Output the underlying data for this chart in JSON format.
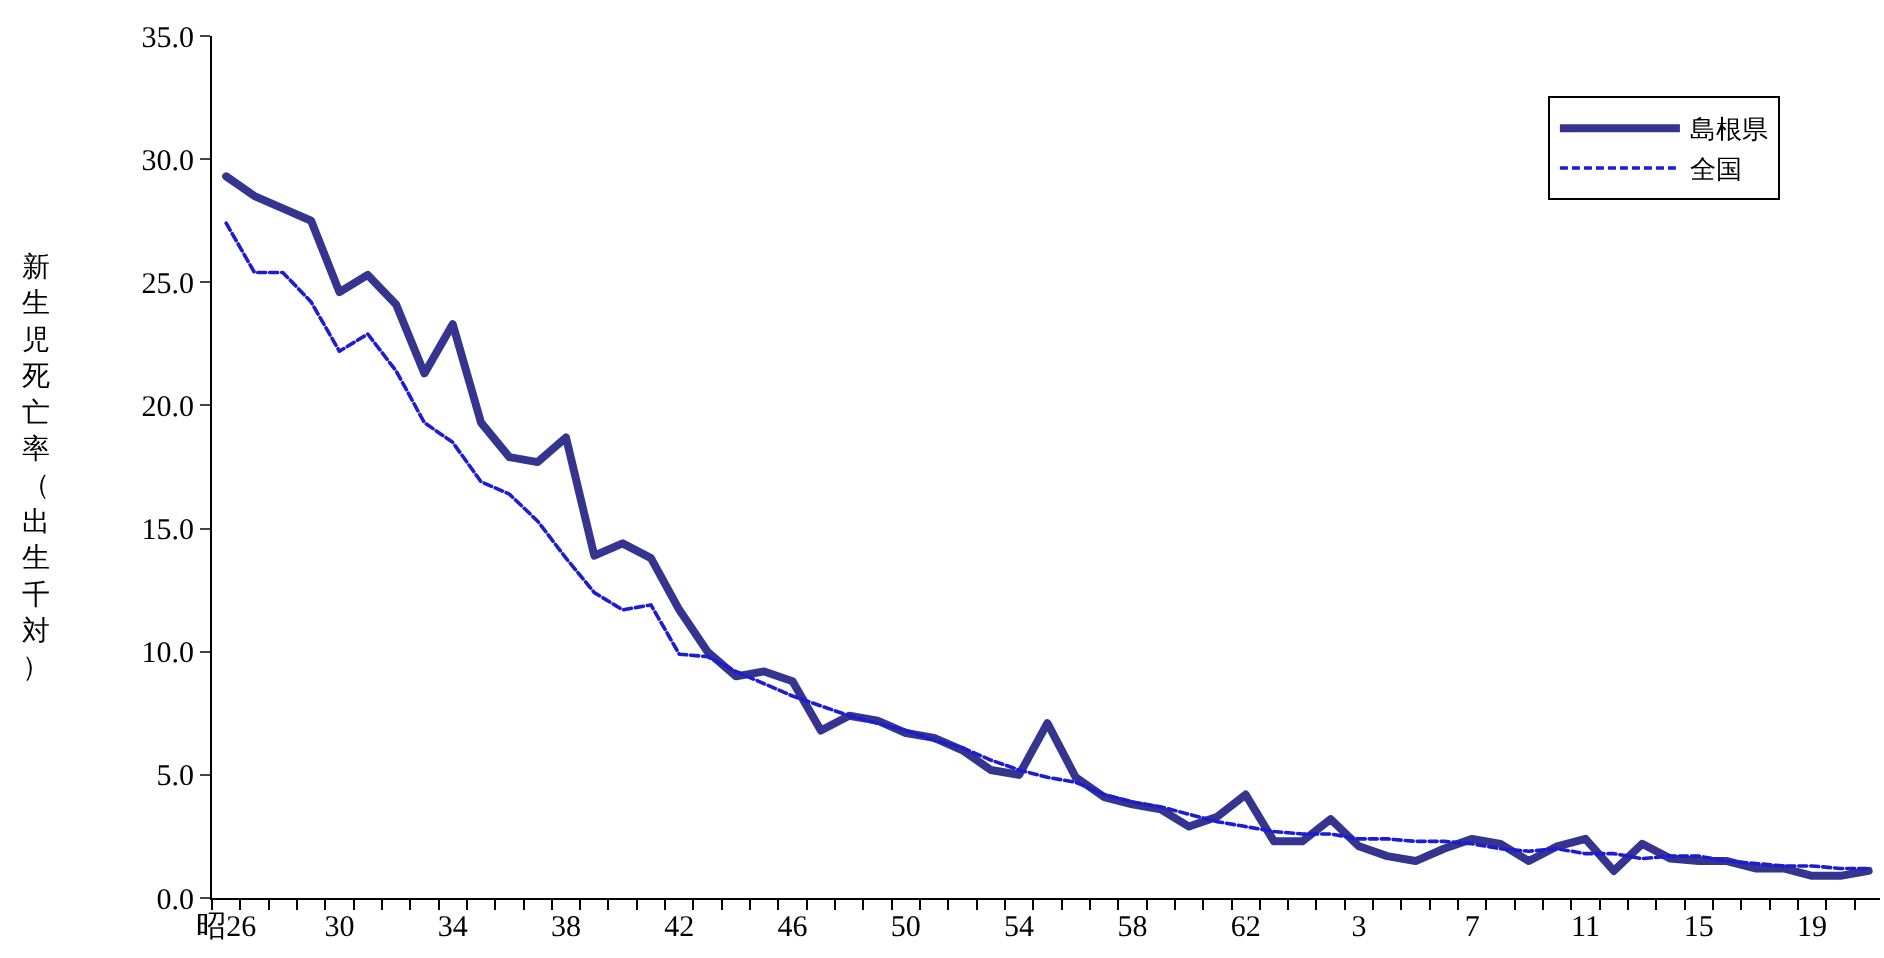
{
  "chart_data": {
    "type": "line",
    "ylabel": "新生児死亡率（出生千対）",
    "categories": [
      "昭26",
      null,
      null,
      null,
      "30",
      null,
      null,
      null,
      "34",
      null,
      null,
      null,
      "38",
      null,
      null,
      null,
      "42",
      null,
      null,
      null,
      "46",
      null,
      null,
      null,
      "50",
      null,
      null,
      null,
      "54",
      null,
      null,
      null,
      "58",
      null,
      null,
      null,
      "62",
      null,
      null,
      null,
      "3",
      null,
      null,
      null,
      "7",
      null,
      null,
      null,
      "11",
      null,
      null,
      null,
      "15",
      null,
      null,
      null,
      "19",
      null,
      null
    ],
    "series": [
      {
        "name": "島根県",
        "color": "#35358f",
        "line_style": "solid",
        "values": [
          29.3,
          28.5,
          28.0,
          27.5,
          24.6,
          25.3,
          24.1,
          21.3,
          23.3,
          19.3,
          17.9,
          17.7,
          18.7,
          13.9,
          14.4,
          13.8,
          11.7,
          10.0,
          9.0,
          9.2,
          8.8,
          6.8,
          7.4,
          7.2,
          6.7,
          6.5,
          6.0,
          5.2,
          5.0,
          7.1,
          4.9,
          4.1,
          3.8,
          3.6,
          2.9,
          3.3,
          4.2,
          2.3,
          2.3,
          3.2,
          2.1,
          1.7,
          1.5,
          2.0,
          2.4,
          2.2,
          1.5,
          2.1,
          2.4,
          1.1,
          2.2,
          1.6,
          1.5,
          1.5,
          1.2,
          1.2,
          0.9,
          0.9,
          1.1
        ]
      },
      {
        "name": "全国",
        "color": "#1c1cd0",
        "line_style": "dashed",
        "values": [
          27.4,
          25.4,
          25.4,
          24.2,
          22.2,
          22.9,
          21.4,
          19.3,
          18.5,
          16.9,
          16.4,
          15.3,
          13.8,
          12.4,
          11.7,
          11.9,
          9.9,
          9.8,
          9.2,
          8.7,
          8.2,
          7.8,
          7.4,
          7.1,
          6.8,
          6.4,
          6.1,
          5.6,
          5.2,
          4.9,
          4.7,
          4.2,
          3.9,
          3.7,
          3.4,
          3.1,
          2.9,
          2.7,
          2.6,
          2.6,
          2.4,
          2.4,
          2.3,
          2.3,
          2.2,
          2.0,
          1.9,
          2.0,
          1.8,
          1.8,
          1.6,
          1.7,
          1.7,
          1.5,
          1.4,
          1.3,
          1.3,
          1.2,
          1.2
        ]
      }
    ],
    "ylim": [
      0,
      35
    ],
    "yticks": [
      {
        "value": 0,
        "label": "0.0"
      },
      {
        "value": 5,
        "label": "5.0"
      },
      {
        "value": 10,
        "label": "10.0"
      },
      {
        "value": 15,
        "label": "15.0"
      },
      {
        "value": 20,
        "label": "20.0"
      },
      {
        "value": 25,
        "label": "25.0"
      },
      {
        "value": 30,
        "label": "30.0"
      },
      {
        "value": 35,
        "label": "35.0"
      }
    ],
    "grid": false,
    "legend": "top right",
    "marker": "none"
  }
}
